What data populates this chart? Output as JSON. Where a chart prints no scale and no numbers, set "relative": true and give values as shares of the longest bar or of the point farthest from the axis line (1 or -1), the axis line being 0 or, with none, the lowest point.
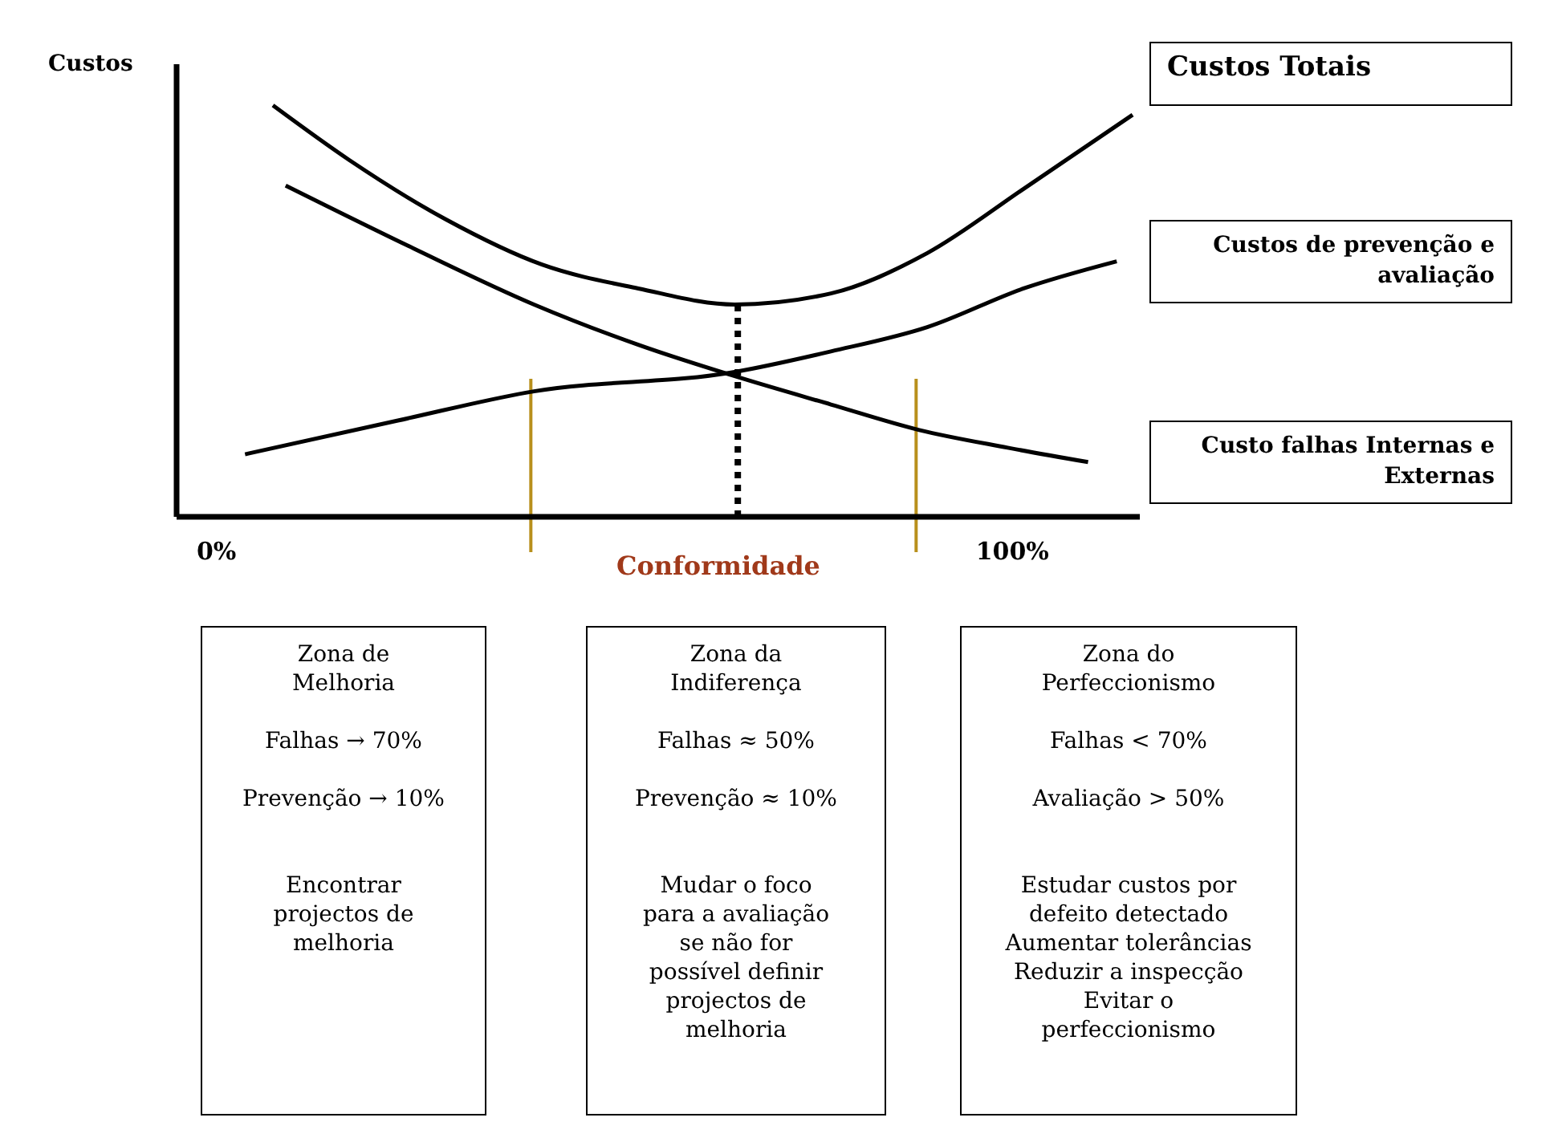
{
  "chart_data": {
    "type": "line",
    "relative": true,
    "ylabel": "Custos",
    "xlabel": "Conformidade",
    "xlim": [
      -5,
      116
    ],
    "xticks": [
      {
        "value": 0,
        "label": "0%"
      },
      {
        "value": 100,
        "label": "100%"
      }
    ],
    "series": [
      {
        "name": "Custos Totais",
        "color": "#000000",
        "x": [
          7.1,
          16.7,
          28.8,
          40.9,
          53.0,
          65.1,
          77.2,
          89.3,
          101.4,
          115.1
        ],
        "values": [
          1.0,
          0.867,
          0.723,
          0.613,
          0.555,
          0.516,
          0.543,
          0.641,
          0.797,
          0.977
        ]
      },
      {
        "name": "Custos de prevenção e avaliação",
        "color": "#000000",
        "x": [
          3.6,
          22.8,
          39.9,
          65.1,
          77.2,
          89.3,
          101.4,
          113.1
        ],
        "values": [
          0.152,
          0.234,
          0.305,
          0.352,
          0.402,
          0.461,
          0.555,
          0.621
        ]
      },
      {
        "name": "Custo falhas Internas e Externas",
        "color": "#000000",
        "x": [
          8.7,
          24.8,
          39.9,
          53.0,
          66.1,
          77.2,
          88.3,
          99.4,
          109.5
        ],
        "values": [
          0.805,
          0.652,
          0.516,
          0.418,
          0.336,
          0.273,
          0.211,
          0.168,
          0.133
        ]
      },
      {
        "color": "#000000",
        "line_style": "dotted",
        "x": [
          65.5,
          65.5
        ],
        "values": [
          0,
          0.516
        ]
      }
    ],
    "ref_lines": [
      {
        "axis": "x",
        "value": 39.5,
        "color": "#b8901c"
      },
      {
        "axis": "x",
        "value": 87.9,
        "color": "#b8901c"
      }
    ],
    "annotations": [
      "Zona de\nMelhoria\n\nFalhas → 70%\n\nPrevenção → 10%\n\n\nEncontrar\nprojectos de\nmelhoria",
      "Zona da\nIndiferença\n\nFalhas ≈ 50%\n\nPrevenção ≈ 10%\n\n\nMudar o foco\npara a avaliação\nse não for\npossível definir\nprojectos de\nmelhoria",
      "Zona do\nPerfeccionismo\n\nFalhas < 70%\n\nAvaliação > 50%\n\n\nEstudar custos por\ndefeito detectado\nAumentar tolerâncias\nReduzir a inspecção\nEvitar o\nperfeccionismo"
    ]
  }
}
